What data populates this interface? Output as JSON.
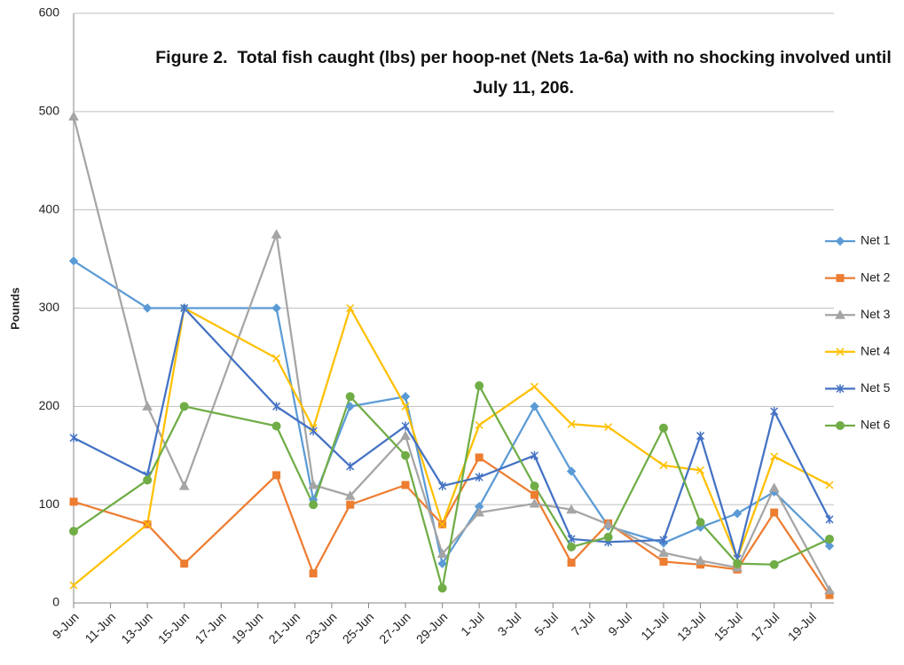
{
  "chart_data": {
    "type": "line",
    "title": "Figure 2.  Total fish caught (lbs) per hoop-net (Nets 1a-6a) with no shocking involved until July 11, 206.",
    "y_label": "Pounds",
    "x": [
      "9-Jun",
      "13-Jun",
      "15-Jun",
      "20-Jun",
      "22-Jun",
      "24-Jun",
      "27-Jun",
      "29-Jun",
      "1-Jul",
      "4-Jul",
      "6-Jul",
      "8-Jul",
      "11-Jul",
      "13-Jul",
      "15-Jul",
      "17-Jul",
      "20-Jul"
    ],
    "xlim": [
      "9-Jun",
      "20-Jul"
    ],
    "xticks": [
      "9-Jun",
      "11-Jun",
      "13-Jun",
      "15-Jun",
      "17-Jun",
      "19-Jun",
      "21-Jun",
      "23-Jun",
      "25-Jun",
      "27-Jun",
      "29-Jun",
      "1-Jul",
      "3-Jul",
      "5-Jul",
      "7-Jul",
      "9-Jul",
      "11-Jul",
      "13-Jul",
      "15-Jul",
      "17-Jul",
      "19-Jul"
    ],
    "ylim": [
      0,
      600
    ],
    "yticks": [
      0,
      100,
      200,
      300,
      400,
      500,
      600
    ],
    "grid": true,
    "legend": "right",
    "series": [
      {
        "name": "Net 1",
        "color": "#5B9BD5",
        "marker": "diamond",
        "values": [
          348,
          300,
          300,
          300,
          105,
          200,
          210,
          40,
          98,
          200,
          134,
          78,
          61,
          77,
          91,
          113,
          58
        ]
      },
      {
        "name": "Net 2",
        "color": "#ED7D31",
        "marker": "square",
        "values": [
          103,
          80,
          40,
          130,
          30,
          100,
          120,
          80,
          148,
          110,
          41,
          81,
          42,
          39,
          34,
          92,
          8
        ]
      },
      {
        "name": "Net 3",
        "color": "#A5A5A5",
        "marker": "triangle",
        "values": [
          495,
          200,
          119,
          375,
          120,
          109,
          170,
          50,
          92,
          101,
          95,
          80,
          51,
          43,
          36,
          117,
          13
        ]
      },
      {
        "name": "Net 4",
        "color": "#FFC000",
        "marker": "x",
        "values": [
          18,
          80,
          300,
          249,
          178,
          300,
          200,
          80,
          181,
          220,
          182,
          179,
          140,
          135,
          45,
          149,
          120
        ]
      },
      {
        "name": "Net 5",
        "color": "#4472C4",
        "marker": "star",
        "values": [
          168,
          130,
          300,
          200,
          175,
          139,
          180,
          119,
          128,
          150,
          65,
          62,
          64,
          170,
          45,
          195,
          85
        ]
      },
      {
        "name": "Net 6",
        "color": "#70AD47",
        "marker": "circle",
        "values": [
          73,
          125,
          200,
          180,
          100,
          210,
          150,
          15,
          221,
          119,
          57,
          67,
          178,
          82,
          40,
          39,
          65
        ]
      }
    ]
  }
}
